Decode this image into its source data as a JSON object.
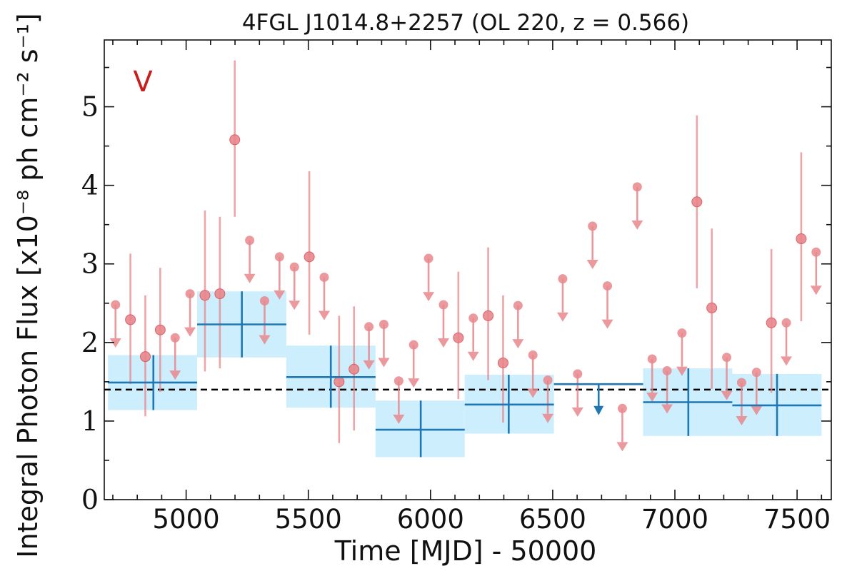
{
  "chart_data": {
    "type": "scatter",
    "title": "4FGL J1014.8+2257 (OL 220, z = 0.566)",
    "xlabel": "Time [MJD] - 50000",
    "ylabel": "Integral Photon Flux [x10⁻⁸ ph cm⁻² s⁻¹]",
    "band_label": "V",
    "xlim": [
      4665,
      7640
    ],
    "ylim": [
      0,
      5.85
    ],
    "x_ticks": [
      {
        "value": 5000,
        "label": "5000"
      },
      {
        "value": 5500,
        "label": "5500"
      },
      {
        "value": 6000,
        "label": "6000"
      },
      {
        "value": 6500,
        "label": "6500"
      },
      {
        "value": 7000,
        "label": "7000"
      },
      {
        "value": 7500,
        "label": "7500"
      }
    ],
    "y_ticks": [
      {
        "value": 0,
        "label": "0"
      },
      {
        "value": 1,
        "label": "1"
      },
      {
        "value": 2,
        "label": "2"
      },
      {
        "value": 3,
        "label": "3"
      },
      {
        "value": 4,
        "label": "4"
      },
      {
        "value": 5,
        "label": "5"
      }
    ],
    "mean_flux": 1.4,
    "colors": {
      "points": "#e8878c",
      "point_edge": "#d9535b",
      "bins": "#1f77b4",
      "bin_band": "#cdeefc",
      "mean_line": "#000000",
      "badge": "#c81e1e"
    },
    "points": [
      {
        "x": 4711,
        "y": 2.48,
        "upper_limit": true,
        "ul": 1.98
      },
      {
        "x": 4772,
        "y": 2.29,
        "lo": 1.47,
        "hi": 3.13
      },
      {
        "x": 4833,
        "y": 1.82,
        "lo": 1.06,
        "hi": 2.6
      },
      {
        "x": 4894,
        "y": 2.16,
        "lo": 1.37,
        "hi": 2.95
      },
      {
        "x": 4955,
        "y": 2.06,
        "upper_limit": true,
        "ul": 1.57
      },
      {
        "x": 5016,
        "y": 2.62,
        "upper_limit": true,
        "ul": 2.12
      },
      {
        "x": 5077,
        "y": 2.6,
        "lo": 1.63,
        "hi": 3.68
      },
      {
        "x": 5138,
        "y": 2.62,
        "lo": 1.67,
        "hi": 3.6
      },
      {
        "x": 5199,
        "y": 4.58,
        "lo": 3.6,
        "hi": 5.59
      },
      {
        "x": 5260,
        "y": 3.3,
        "upper_limit": true,
        "ul": 2.8
      },
      {
        "x": 5321,
        "y": 2.53,
        "upper_limit": true,
        "ul": 2.02
      },
      {
        "x": 5382,
        "y": 3.09,
        "upper_limit": true,
        "ul": 2.59
      },
      {
        "x": 5443,
        "y": 2.96,
        "upper_limit": true,
        "ul": 2.46
      },
      {
        "x": 5504,
        "y": 3.09,
        "lo": 2.1,
        "hi": 4.18
      },
      {
        "x": 5565,
        "y": 2.83,
        "upper_limit": true,
        "ul": 2.33
      },
      {
        "x": 5626,
        "y": 1.5,
        "lo": 0.72,
        "hi": 2.34
      },
      {
        "x": 5687,
        "y": 1.66,
        "lo": 0.88,
        "hi": 2.46
      },
      {
        "x": 5748,
        "y": 2.2,
        "upper_limit": true,
        "ul": 1.7
      },
      {
        "x": 5809,
        "y": 2.23,
        "upper_limit": true,
        "ul": 1.73
      },
      {
        "x": 5870,
        "y": 1.51,
        "upper_limit": true,
        "ul": 1.01
      },
      {
        "x": 5931,
        "y": 1.97,
        "upper_limit": true,
        "ul": 1.47
      },
      {
        "x": 5992,
        "y": 3.07,
        "upper_limit": true,
        "ul": 2.57
      },
      {
        "x": 6053,
        "y": 2.48,
        "upper_limit": true,
        "ul": 1.98
      },
      {
        "x": 6114,
        "y": 2.06,
        "lo": 1.28,
        "hi": 2.9
      },
      {
        "x": 6175,
        "y": 2.31,
        "upper_limit": true,
        "ul": 1.81
      },
      {
        "x": 6236,
        "y": 2.34,
        "lo": 1.52,
        "hi": 3.21
      },
      {
        "x": 6297,
        "y": 1.74,
        "lo": 0.98,
        "hi": 2.6
      },
      {
        "x": 6358,
        "y": 2.47,
        "upper_limit": true,
        "ul": 1.97
      },
      {
        "x": 6419,
        "y": 1.84,
        "upper_limit": true,
        "ul": 1.34
      },
      {
        "x": 6480,
        "y": 1.52,
        "upper_limit": true,
        "ul": 1.02
      },
      {
        "x": 6541,
        "y": 2.81,
        "upper_limit": true,
        "ul": 2.31
      },
      {
        "x": 6602,
        "y": 1.6,
        "upper_limit": true,
        "ul": 1.1
      },
      {
        "x": 6663,
        "y": 3.48,
        "upper_limit": true,
        "ul": 2.98
      },
      {
        "x": 6724,
        "y": 2.72,
        "upper_limit": true,
        "ul": 2.22
      },
      {
        "x": 6785,
        "y": 1.16,
        "upper_limit": true,
        "ul": 0.66
      },
      {
        "x": 6846,
        "y": 3.98,
        "upper_limit": true,
        "ul": 3.48
      },
      {
        "x": 6907,
        "y": 1.79,
        "upper_limit": true,
        "ul": 1.29
      },
      {
        "x": 6968,
        "y": 1.64,
        "upper_limit": true,
        "ul": 1.14
      },
      {
        "x": 7029,
        "y": 2.12,
        "upper_limit": true,
        "ul": 1.62
      },
      {
        "x": 7090,
        "y": 3.79,
        "lo": 2.69,
        "hi": 4.89
      },
      {
        "x": 7151,
        "y": 2.44,
        "lo": 1.41,
        "hi": 3.45
      },
      {
        "x": 7212,
        "y": 1.81,
        "upper_limit": true,
        "ul": 1.31
      },
      {
        "x": 7273,
        "y": 1.49,
        "upper_limit": true,
        "ul": 0.99
      },
      {
        "x": 7334,
        "y": 1.62,
        "upper_limit": true,
        "ul": 1.12
      },
      {
        "x": 7395,
        "y": 2.25,
        "lo": 1.36,
        "hi": 3.19
      },
      {
        "x": 7456,
        "y": 2.25,
        "upper_limit": true,
        "ul": 1.75
      },
      {
        "x": 7517,
        "y": 3.32,
        "lo": 2.27,
        "hi": 4.42
      },
      {
        "x": 7578,
        "y": 3.15,
        "upper_limit": true,
        "ul": 2.65
      }
    ],
    "bins": [
      {
        "x0": 4680,
        "x1": 5045,
        "xc": 4866,
        "y": 1.49,
        "ylo": 1.14,
        "yhi": 1.84
      },
      {
        "x0": 5045,
        "x1": 5410,
        "xc": 5228,
        "y": 2.23,
        "ylo": 1.81,
        "yhi": 2.65
      },
      {
        "x0": 5410,
        "x1": 5775,
        "xc": 5592,
        "y": 1.56,
        "ylo": 1.17,
        "yhi": 1.96
      },
      {
        "x0": 5775,
        "x1": 6140,
        "xc": 5960,
        "y": 0.89,
        "ylo": 0.54,
        "yhi": 1.26
      },
      {
        "x0": 6140,
        "x1": 6505,
        "xc": 6320,
        "y": 1.21,
        "ylo": 0.84,
        "yhi": 1.59
      },
      {
        "x0": 6505,
        "x1": 6870,
        "xc": 6688,
        "y": 1.47,
        "upper_limit": true,
        "ul": 1.12
      },
      {
        "x0": 6870,
        "x1": 7235,
        "xc": 7055,
        "y": 1.24,
        "ylo": 0.81,
        "yhi": 1.67
      },
      {
        "x0": 7235,
        "x1": 7600,
        "xc": 7418,
        "y": 1.2,
        "ylo": 0.81,
        "yhi": 1.6
      }
    ]
  }
}
